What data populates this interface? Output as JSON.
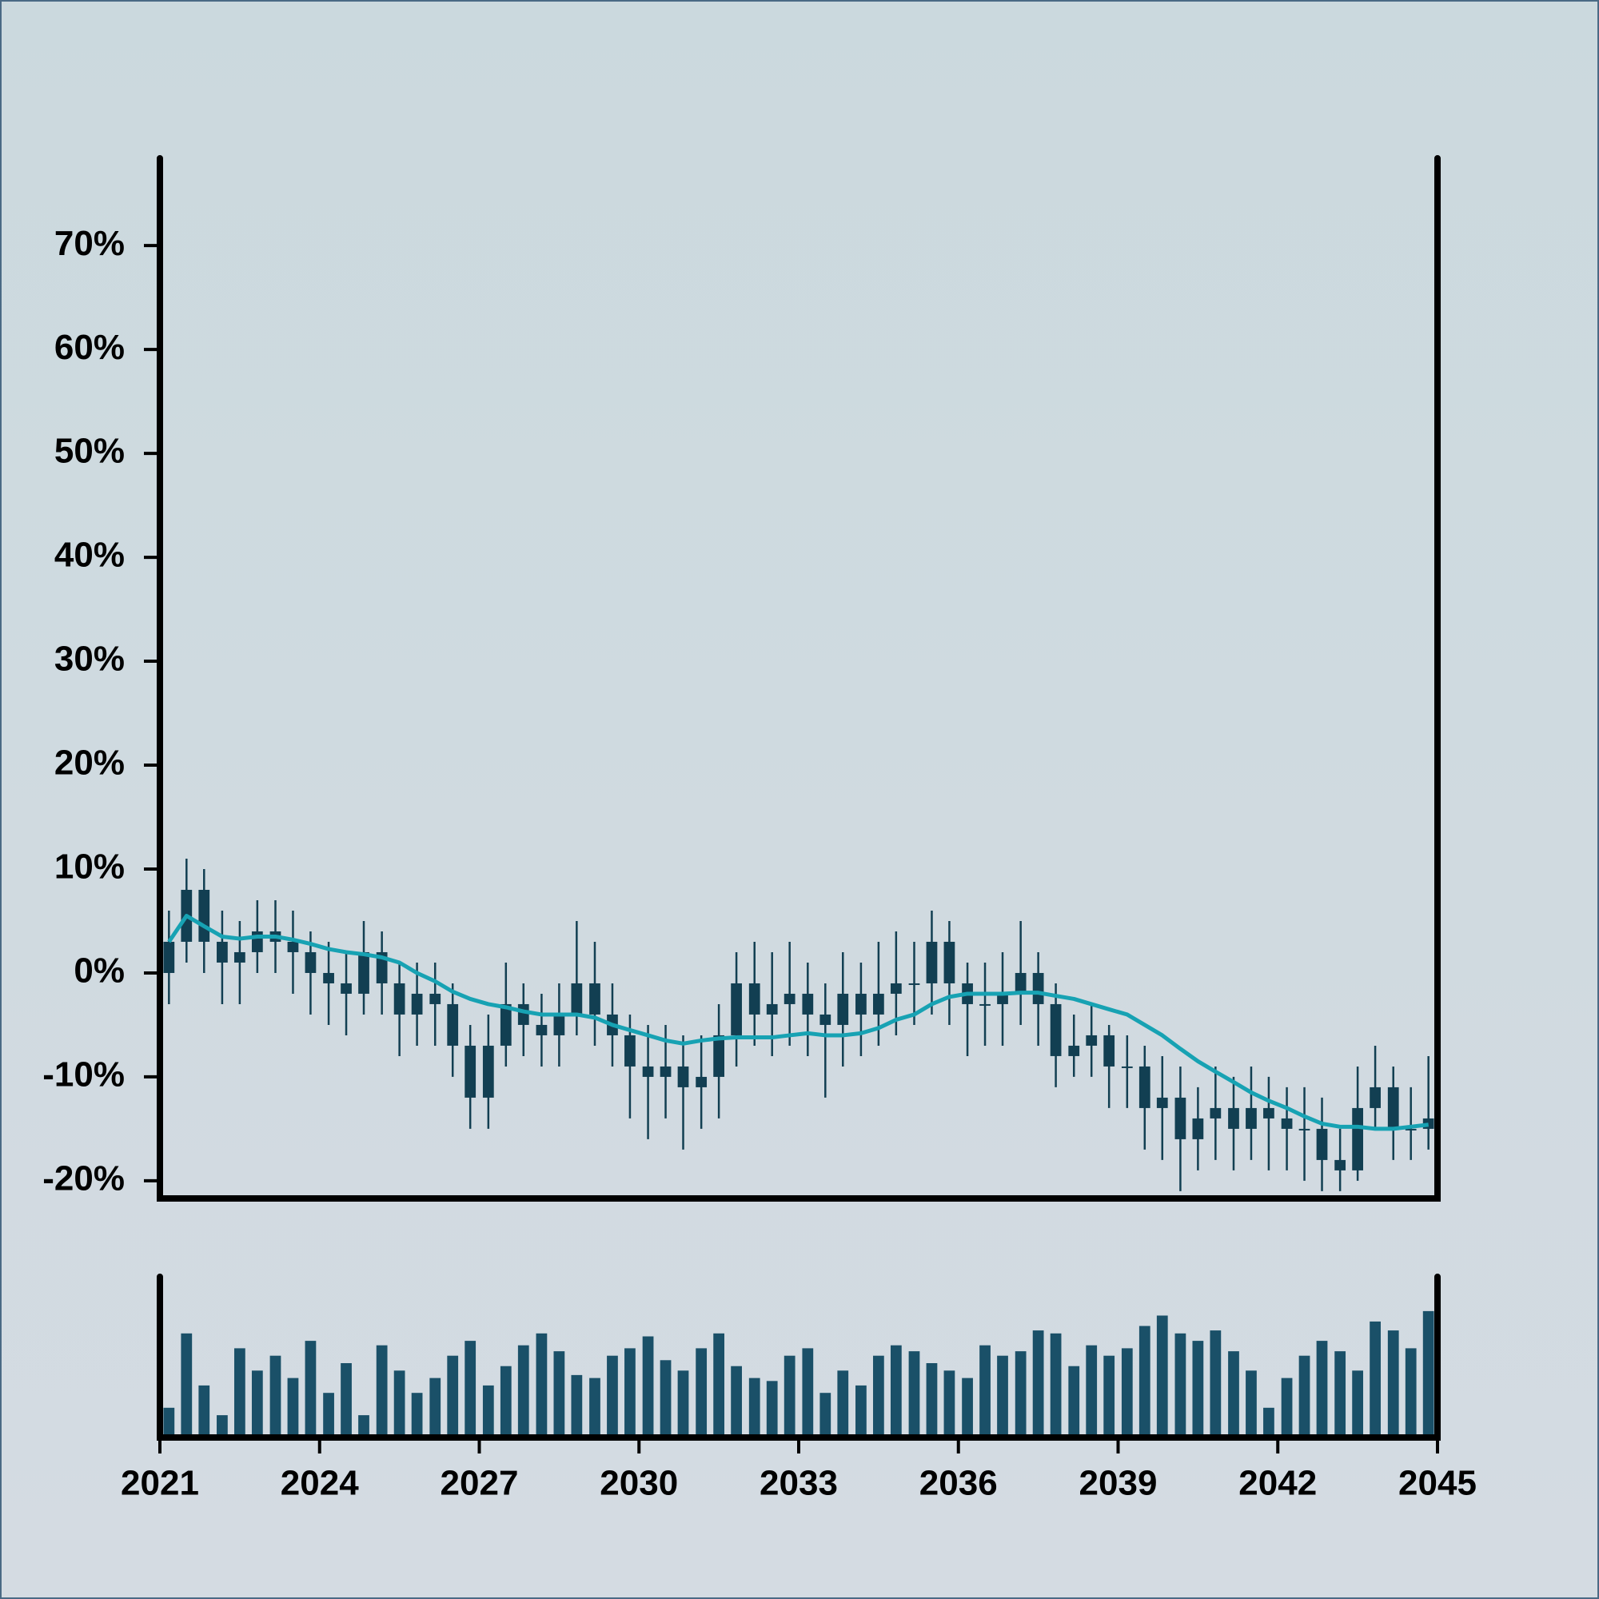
{
  "chart_data": {
    "type": "candlestick",
    "x": [
      2021.17,
      2021.5,
      2021.83,
      2022.17,
      2022.5,
      2022.83,
      2023.17,
      2023.5,
      2023.83,
      2024.17,
      2024.5,
      2024.83,
      2025.17,
      2025.5,
      2025.83,
      2026.17,
      2026.5,
      2026.83,
      2027.17,
      2027.5,
      2027.83,
      2028.17,
      2028.5,
      2028.83,
      2029.17,
      2029.5,
      2029.83,
      2030.17,
      2030.5,
      2030.83,
      2031.17,
      2031.5,
      2031.83,
      2032.17,
      2032.5,
      2032.83,
      2033.17,
      2033.5,
      2033.83,
      2034.17,
      2034.5,
      2034.83,
      2035.17,
      2035.5,
      2035.83,
      2036.17,
      2036.5,
      2036.83,
      2037.17,
      2037.5,
      2037.83,
      2038.17,
      2038.5,
      2038.83,
      2039.17,
      2039.5,
      2039.83,
      2040.17,
      2040.5,
      2040.83,
      2041.17,
      2041.5,
      2041.83,
      2042.17,
      2042.5,
      2042.83,
      2043.17,
      2043.5,
      2043.83,
      2044.17,
      2044.5,
      2044.83
    ],
    "open": [
      0,
      3,
      8,
      3,
      1,
      2,
      4,
      3,
      2,
      0,
      -1,
      -2,
      2,
      -1,
      -4,
      -2,
      -3,
      -7,
      -12,
      -7,
      -3,
      -5,
      -6,
      -4,
      -1,
      -4,
      -6,
      -9,
      -10,
      -9,
      -11,
      -10,
      -6,
      -1,
      -4,
      -3,
      -2,
      -4,
      -5,
      -2,
      -4,
      -2,
      -1,
      -1,
      3,
      -1,
      -3,
      -3,
      -2,
      0,
      -3,
      -8,
      -7,
      -6,
      -9,
      -9,
      -13,
      -12,
      -16,
      -14,
      -13,
      -15,
      -13,
      -14,
      -15,
      -15,
      -18,
      -19,
      -13,
      -11,
      -15,
      -15
    ],
    "high": [
      6,
      11,
      10,
      6,
      5,
      7,
      7,
      6,
      4,
      3,
      2,
      5,
      4,
      1,
      1,
      1,
      -1,
      -5,
      -4,
      1,
      -1,
      -2,
      -1,
      5,
      3,
      -1,
      -4,
      -5,
      -5,
      -6,
      -6,
      -3,
      2,
      3,
      2,
      3,
      1,
      -1,
      2,
      1,
      3,
      4,
      3,
      6,
      5,
      1,
      1,
      2,
      5,
      2,
      -1,
      -4,
      -3,
      -5,
      -6,
      -7,
      -8,
      -9,
      -11,
      -9,
      -10,
      -9,
      -10,
      -11,
      -11,
      -12,
      -15,
      -9,
      -7,
      -9,
      -11,
      -8
    ],
    "low": [
      -3,
      1,
      0,
      -3,
      -3,
      0,
      0,
      -2,
      -4,
      -5,
      -6,
      -4,
      -4,
      -8,
      -7,
      -7,
      -10,
      -15,
      -15,
      -9,
      -8,
      -9,
      -9,
      -6,
      -7,
      -9,
      -14,
      -16,
      -14,
      -17,
      -15,
      -14,
      -9,
      -7,
      -8,
      -7,
      -8,
      -12,
      -9,
      -8,
      -7,
      -6,
      -5,
      -4,
      -5,
      -8,
      -7,
      -7,
      -5,
      -7,
      -11,
      -10,
      -10,
      -13,
      -13,
      -17,
      -18,
      -21,
      -19,
      -18,
      -19,
      -18,
      -19,
      -19,
      -20,
      -21,
      -21,
      -20,
      -15,
      -18,
      -18,
      -17
    ],
    "close": [
      3,
      8,
      3,
      1,
      2,
      4,
      3,
      2,
      0,
      -1,
      -2,
      2,
      -1,
      -4,
      -2,
      -3,
      -7,
      -12,
      -7,
      -3,
      -5,
      -6,
      -4,
      -1,
      -4,
      -6,
      -9,
      -10,
      -9,
      -11,
      -10,
      -6,
      -1,
      -4,
      -3,
      -2,
      -4,
      -5,
      -2,
      -4,
      -2,
      -1,
      -1,
      3,
      -1,
      -3,
      -3,
      -2,
      0,
      -3,
      -8,
      -7,
      -6,
      -9,
      -9,
      -13,
      -12,
      -16,
      -14,
      -13,
      -15,
      -13,
      -14,
      -15,
      -15,
      -18,
      -19,
      -13,
      -11,
      -15,
      -15,
      -14
    ],
    "candle_color": "#123f52",
    "ma": {
      "color": "#17a2b3",
      "values": [
        3,
        5.5,
        4.5,
        3.5,
        3.3,
        3.5,
        3.5,
        3.2,
        2.8,
        2.3,
        2,
        1.8,
        1.5,
        1,
        0,
        -0.8,
        -1.8,
        -2.5,
        -3,
        -3.3,
        -3.7,
        -4,
        -4,
        -4,
        -4.3,
        -5,
        -5.5,
        -6,
        -6.5,
        -6.8,
        -6.5,
        -6.3,
        -6.2,
        -6.2,
        -6.2,
        -6,
        -5.8,
        -6,
        -6,
        -5.8,
        -5.3,
        -4.5,
        -4,
        -3,
        -2.3,
        -2,
        -2,
        -2,
        -1.9,
        -1.9,
        -2.2,
        -2.5,
        -3,
        -3.5,
        -4,
        -5,
        -6,
        -7.3,
        -8.5,
        -9.5,
        -10.5,
        -11.5,
        -12.3,
        -13,
        -13.8,
        -14.5,
        -14.8,
        -14.8,
        -15,
        -15,
        -14.8,
        -14.6
      ]
    },
    "volume": {
      "color": "#1a5068",
      "ylim": [
        0,
        100
      ],
      "values": [
        20,
        70,
        35,
        15,
        60,
        45,
        55,
        40,
        65,
        30,
        50,
        15,
        62,
        45,
        30,
        40,
        55,
        65,
        35,
        48,
        62,
        70,
        58,
        42,
        40,
        55,
        60,
        68,
        52,
        45,
        60,
        70,
        48,
        40,
        38,
        55,
        60,
        30,
        45,
        35,
        55,
        62,
        58,
        50,
        45,
        40,
        62,
        55,
        58,
        72,
        70,
        48,
        62,
        55,
        60,
        75,
        82,
        70,
        65,
        72,
        58,
        45,
        20,
        40,
        55,
        65,
        58,
        45,
        78,
        72,
        60,
        85
      ]
    },
    "xlim": [
      2021,
      2045
    ],
    "xticks": [
      2021,
      2024,
      2027,
      2030,
      2033,
      2036,
      2039,
      2042,
      2045
    ],
    "ylim": [
      -21.7,
      78.4
    ],
    "yticks": [
      {
        "value": -20,
        "label": "-20%"
      },
      {
        "value": -10,
        "label": "-10%"
      },
      {
        "value": 0,
        "label": "0%"
      },
      {
        "value": 10,
        "label": "10%"
      },
      {
        "value": 20,
        "label": "20%"
      },
      {
        "value": 30,
        "label": "30%"
      },
      {
        "value": 40,
        "label": "40%"
      },
      {
        "value": 50,
        "label": "50%"
      },
      {
        "value": 60,
        "label": "60%"
      },
      {
        "value": 70,
        "label": "70%"
      }
    ]
  }
}
